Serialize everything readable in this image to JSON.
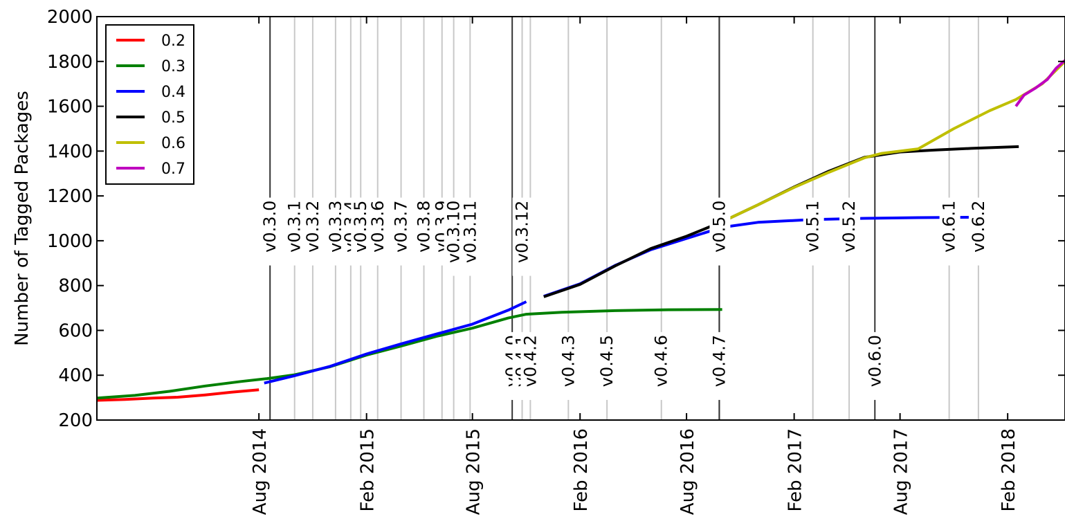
{
  "chart_data": {
    "type": "line",
    "title": "",
    "xlabel": "",
    "ylabel": "Number of Tagged Packages",
    "xlim": [
      "2013-10-28",
      "2018-05-10"
    ],
    "ylim": [
      200,
      2000
    ],
    "yticks": [
      200,
      400,
      600,
      800,
      1000,
      1200,
      1400,
      1600,
      1800,
      2000
    ],
    "xticks": [
      {
        "date": "2014-08-01",
        "label": "Aug 2014"
      },
      {
        "date": "2015-02-01",
        "label": "Feb 2015"
      },
      {
        "date": "2015-08-01",
        "label": "Aug 2015"
      },
      {
        "date": "2016-02-01",
        "label": "Feb 2016"
      },
      {
        "date": "2016-08-01",
        "label": "Aug 2016"
      },
      {
        "date": "2017-02-01",
        "label": "Feb 2017"
      },
      {
        "date": "2017-08-01",
        "label": "Aug 2017"
      },
      {
        "date": "2018-02-01",
        "label": "Feb 2018"
      }
    ],
    "grid": false,
    "legend": "top-left",
    "series": [
      {
        "name": "0.2",
        "color": "#ff0000",
        "points": [
          [
            "2013-10-28",
            288
          ],
          [
            "2013-12-15",
            292
          ],
          [
            "2014-02-01",
            298
          ],
          [
            "2014-03-15",
            302
          ],
          [
            "2014-05-01",
            312
          ],
          [
            "2014-06-15",
            324
          ],
          [
            "2014-08-01",
            335
          ]
        ]
      },
      {
        "name": "0.3",
        "color": "#008000",
        "points": [
          [
            "2013-10-28",
            298
          ],
          [
            "2014-01-01",
            310
          ],
          [
            "2014-03-01",
            328
          ],
          [
            "2014-05-01",
            352
          ],
          [
            "2014-07-01",
            372
          ],
          [
            "2014-08-15",
            385
          ],
          [
            "2014-10-01",
            402
          ],
          [
            "2014-12-01",
            438
          ],
          [
            "2015-02-01",
            490
          ],
          [
            "2015-04-01",
            530
          ],
          [
            "2015-06-01",
            574
          ],
          [
            "2015-08-01",
            610
          ],
          [
            "2015-10-01",
            655
          ],
          [
            "2015-11-01",
            672
          ],
          [
            "2016-01-01",
            681
          ],
          [
            "2016-04-01",
            688
          ],
          [
            "2016-07-01",
            692
          ],
          [
            "2016-10-01",
            693
          ]
        ]
      },
      {
        "name": "0.4",
        "color": "#0000ff",
        "points": [
          [
            "2014-08-10",
            365
          ],
          [
            "2014-10-01",
            398
          ],
          [
            "2014-12-01",
            440
          ],
          [
            "2015-02-01",
            495
          ],
          [
            "2015-04-01",
            540
          ],
          [
            "2015-06-01",
            584
          ],
          [
            "2015-08-01",
            628
          ],
          [
            "2015-10-01",
            690
          ],
          [
            "2015-11-01",
            728
          ],
          null,
          [
            "2015-12-01",
            752
          ],
          [
            "2016-02-01",
            808
          ],
          [
            "2016-04-01",
            890
          ],
          [
            "2016-06-01",
            960
          ],
          [
            "2016-08-01",
            1010
          ],
          [
            "2016-10-01",
            1060
          ],
          [
            "2016-12-01",
            1082
          ],
          [
            "2017-03-01",
            1094
          ],
          [
            "2017-06-01",
            1100
          ],
          [
            "2017-09-01",
            1103
          ],
          [
            "2017-12-10",
            1105
          ]
        ]
      },
      {
        "name": "0.5",
        "color": "#000000",
        "points": [
          [
            "2015-12-01",
            750
          ],
          [
            "2016-02-01",
            805
          ],
          [
            "2016-04-01",
            888
          ],
          [
            "2016-06-01",
            965
          ],
          [
            "2016-08-01",
            1020
          ],
          [
            "2016-10-01",
            1085
          ],
          [
            "2016-12-01",
            1160
          ],
          [
            "2017-02-01",
            1240
          ],
          [
            "2017-04-01",
            1310
          ],
          [
            "2017-06-01",
            1372
          ],
          [
            "2017-08-01",
            1396
          ],
          [
            "2017-10-01",
            1405
          ],
          [
            "2017-12-01",
            1412
          ],
          [
            "2018-02-20",
            1420
          ]
        ]
      },
      {
        "name": "0.6",
        "color": "#bfbf00",
        "points": [
          [
            "2016-10-01",
            1085
          ],
          [
            "2016-12-01",
            1160
          ],
          [
            "2017-02-01",
            1238
          ],
          [
            "2017-04-01",
            1305
          ],
          [
            "2017-06-01",
            1370
          ],
          [
            "2017-07-01",
            1390
          ],
          [
            "2017-09-01",
            1410
          ],
          [
            "2017-11-01",
            1500
          ],
          [
            "2018-01-01",
            1580
          ],
          [
            "2018-02-15",
            1630
          ],
          [
            "2018-04-01",
            1700
          ],
          [
            "2018-05-10",
            1800
          ]
        ]
      },
      {
        "name": "0.7",
        "color": "#bf00bf",
        "points": [
          [
            "2018-02-15",
            1600
          ],
          [
            "2018-03-01",
            1650
          ],
          [
            "2018-03-20",
            1680
          ],
          [
            "2018-04-10",
            1720
          ],
          [
            "2018-04-25",
            1770
          ],
          [
            "2018-05-10",
            1805
          ]
        ]
      }
    ],
    "releases": [
      {
        "label": "v0.3.0",
        "date": "2014-08-20",
        "major": true,
        "label_position": "upper"
      },
      {
        "label": "v0.3.1",
        "date": "2014-10-01",
        "major": false,
        "label_position": "upper"
      },
      {
        "label": "v0.3.2",
        "date": "2014-11-01",
        "major": false,
        "label_position": "upper"
      },
      {
        "label": "v0.3.3",
        "date": "2014-12-10",
        "major": false,
        "label_position": "upper"
      },
      {
        "label": "v0.3.4",
        "date": "2015-01-05",
        "major": false,
        "label_position": "upper"
      },
      {
        "label": "v0.3.5",
        "date": "2015-01-22",
        "major": false,
        "label_position": "upper"
      },
      {
        "label": "v0.3.6",
        "date": "2015-02-20",
        "major": false,
        "label_position": "upper"
      },
      {
        "label": "v0.3.7",
        "date": "2015-04-01",
        "major": false,
        "label_position": "upper"
      },
      {
        "label": "v0.3.8",
        "date": "2015-05-10",
        "major": false,
        "label_position": "upper"
      },
      {
        "label": "v0.3.9",
        "date": "2015-06-10",
        "major": false,
        "label_position": "upper"
      },
      {
        "label": "v0.3.10",
        "date": "2015-06-30",
        "major": false,
        "label_position": "upper"
      },
      {
        "label": "v0.3.11",
        "date": "2015-07-28",
        "major": false,
        "label_position": "upper"
      },
      {
        "label": "v0.3.12",
        "date": "2015-10-25",
        "major": false,
        "label_position": "upper"
      },
      {
        "label": "v0.4.0",
        "date": "2015-10-08",
        "major": true,
        "label_position": "lower"
      },
      {
        "label": "v0.4.1",
        "date": "2015-10-25",
        "major": false,
        "label_position": "lower"
      },
      {
        "label": "v0.4.2",
        "date": "2015-11-08",
        "major": false,
        "label_position": "lower"
      },
      {
        "label": "v0.4.3",
        "date": "2016-01-12",
        "major": false,
        "label_position": "lower"
      },
      {
        "label": "v0.4.5",
        "date": "2016-03-18",
        "major": false,
        "label_position": "lower"
      },
      {
        "label": "v0.4.6",
        "date": "2016-06-19",
        "major": false,
        "label_position": "lower"
      },
      {
        "label": "v0.4.7",
        "date": "2016-09-26",
        "major": true,
        "label_position": "lower"
      },
      {
        "label": "v0.5.0",
        "date": "2016-09-26",
        "major": true,
        "label_position": "upper"
      },
      {
        "label": "v0.5.1",
        "date": "2017-03-05",
        "major": false,
        "label_position": "upper"
      },
      {
        "label": "v0.5.2",
        "date": "2017-05-06",
        "major": false,
        "label_position": "upper"
      },
      {
        "label": "v0.6.0",
        "date": "2017-06-19",
        "major": true,
        "label_position": "lower"
      },
      {
        "label": "v0.6.1",
        "date": "2017-10-24",
        "major": false,
        "label_position": "upper"
      },
      {
        "label": "v0.6.2",
        "date": "2017-12-13",
        "major": false,
        "label_position": "upper"
      }
    ]
  }
}
